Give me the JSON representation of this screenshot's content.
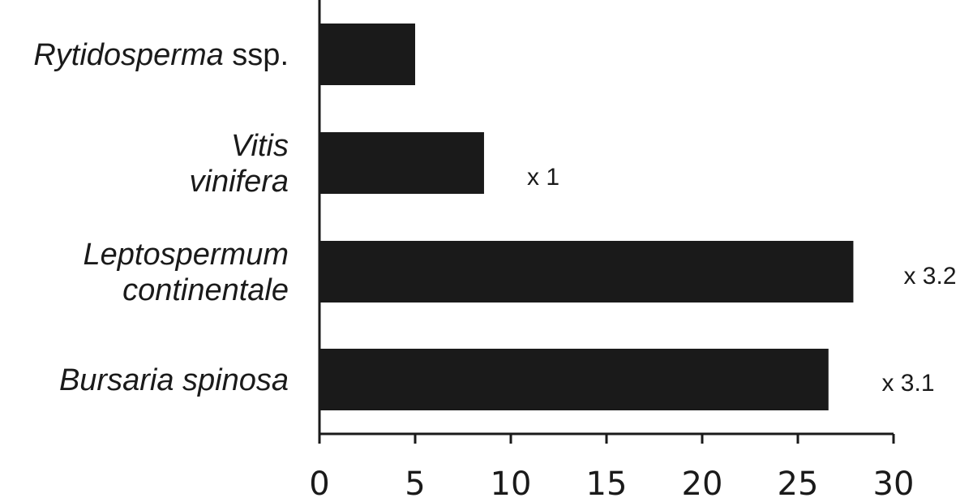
{
  "chart_data": {
    "type": "bar",
    "orientation": "horizontal",
    "categories": [
      {
        "id": "rytidosperma",
        "lines": [
          {
            "italic": "Rytidosperma",
            "plain": " ssp."
          }
        ]
      },
      {
        "id": "vitis",
        "lines": [
          {
            "italic": "Vitis",
            "plain": ""
          },
          {
            "italic": "vinifera",
            "plain": ""
          }
        ]
      },
      {
        "id": "leptospermum",
        "lines": [
          {
            "italic": "Leptospermum",
            "plain": ""
          },
          {
            "italic": "continentale",
            "plain": ""
          }
        ]
      },
      {
        "id": "bursaria",
        "lines": [
          {
            "italic": "Bursaria spinosa",
            "plain": ""
          }
        ]
      }
    ],
    "values": [
      5,
      8.6,
      27.9,
      26.6
    ],
    "annotations": [
      "",
      "x 1",
      "x 3.2",
      "x 3.1"
    ],
    "xlim": [
      0,
      30
    ],
    "xticks": [
      "0",
      "5",
      "10",
      "15",
      "20",
      "25",
      "30"
    ],
    "title": "",
    "xlabel": "",
    "ylabel": "",
    "grid": false,
    "bar_color": "#1a1a1a"
  }
}
